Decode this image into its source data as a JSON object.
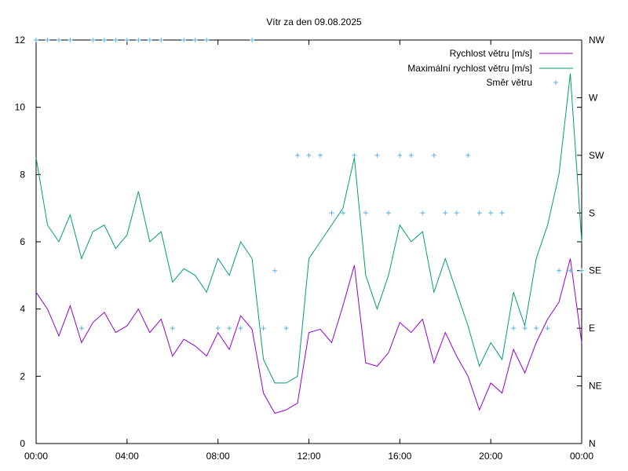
{
  "chart_data": {
    "type": "line",
    "title": "Vítr za den 09.08.2025",
    "x_ticks": [
      "00:00",
      "04:00",
      "08:00",
      "12:00",
      "16:00",
      "20:00",
      "00:00"
    ],
    "x_range_hours": [
      0,
      24
    ],
    "y_left": {
      "min": 0,
      "max": 12,
      "ticks": [
        0,
        2,
        4,
        6,
        8,
        10,
        12
      ]
    },
    "y_right": {
      "ticks": [
        "N",
        "NE",
        "E",
        "SE",
        "S",
        "SW",
        "W",
        "NW"
      ]
    },
    "grid": false,
    "legend_position": "top-right",
    "colors": {
      "speed": "#9400d3",
      "max": "#009e73",
      "dir": "#56b4e9"
    },
    "series": [
      {
        "name": "Rychlost větru [m/s]",
        "unit": "m/s",
        "points": [
          [
            0,
            4.5
          ],
          [
            0.5,
            4.0
          ],
          [
            1,
            3.2
          ],
          [
            1.5,
            4.1
          ],
          [
            2,
            3.0
          ],
          [
            2.5,
            3.6
          ],
          [
            3,
            3.9
          ],
          [
            3.5,
            3.3
          ],
          [
            4,
            3.5
          ],
          [
            4.5,
            4.0
          ],
          [
            5,
            3.3
          ],
          [
            5.5,
            3.7
          ],
          [
            6,
            2.6
          ],
          [
            6.5,
            3.1
          ],
          [
            7,
            2.9
          ],
          [
            7.5,
            2.6
          ],
          [
            8,
            3.3
          ],
          [
            8.5,
            2.8
          ],
          [
            9,
            3.8
          ],
          [
            9.5,
            3.4
          ],
          [
            10,
            1.5
          ],
          [
            10.5,
            0.9
          ],
          [
            11,
            1.0
          ],
          [
            11.5,
            1.2
          ],
          [
            12,
            3.3
          ],
          [
            12.5,
            3.4
          ],
          [
            13,
            3.0
          ],
          [
            13.5,
            4.1
          ],
          [
            14,
            5.3
          ],
          [
            14.5,
            2.4
          ],
          [
            15,
            2.3
          ],
          [
            15.5,
            2.7
          ],
          [
            16,
            3.6
          ],
          [
            16.5,
            3.3
          ],
          [
            17,
            3.7
          ],
          [
            17.5,
            2.4
          ],
          [
            18,
            3.3
          ],
          [
            18.5,
            2.6
          ],
          [
            19,
            2.0
          ],
          [
            19.5,
            1.0
          ],
          [
            20,
            1.8
          ],
          [
            20.5,
            1.5
          ],
          [
            21,
            2.8
          ],
          [
            21.5,
            2.1
          ],
          [
            22,
            3.0
          ],
          [
            22.5,
            3.7
          ],
          [
            23,
            4.2
          ],
          [
            23.5,
            5.5
          ],
          [
            24,
            3.0
          ]
        ]
      },
      {
        "name": "Maximální rychlost větru [m/s]",
        "unit": "m/s",
        "points": [
          [
            0,
            8.5
          ],
          [
            0.5,
            6.5
          ],
          [
            1,
            6.0
          ],
          [
            1.5,
            6.8
          ],
          [
            2,
            5.5
          ],
          [
            2.5,
            6.3
          ],
          [
            3,
            6.5
          ],
          [
            3.5,
            5.8
          ],
          [
            4,
            6.2
          ],
          [
            4.5,
            7.5
          ],
          [
            5,
            6.0
          ],
          [
            5.5,
            6.3
          ],
          [
            6,
            4.8
          ],
          [
            6.5,
            5.2
          ],
          [
            7,
            5.0
          ],
          [
            7.5,
            4.5
          ],
          [
            8,
            5.5
          ],
          [
            8.5,
            5.0
          ],
          [
            9,
            6.0
          ],
          [
            9.5,
            5.5
          ],
          [
            10,
            2.5
          ],
          [
            10.5,
            1.8
          ],
          [
            11,
            1.8
          ],
          [
            11.5,
            2.0
          ],
          [
            12,
            5.5
          ],
          [
            12.5,
            6.0
          ],
          [
            13,
            6.5
          ],
          [
            13.5,
            7.0
          ],
          [
            14,
            8.5
          ],
          [
            14.5,
            5.0
          ],
          [
            15,
            4.0
          ],
          [
            15.5,
            5.0
          ],
          [
            16,
            6.5
          ],
          [
            16.5,
            6.0
          ],
          [
            17,
            6.3
          ],
          [
            17.5,
            4.5
          ],
          [
            18,
            5.5
          ],
          [
            18.5,
            4.5
          ],
          [
            19,
            3.5
          ],
          [
            19.5,
            2.3
          ],
          [
            20,
            3.0
          ],
          [
            20.5,
            2.5
          ],
          [
            21,
            4.5
          ],
          [
            21.5,
            3.5
          ],
          [
            22,
            5.5
          ],
          [
            22.5,
            6.5
          ],
          [
            23,
            8.0
          ],
          [
            23.5,
            11.0
          ],
          [
            24,
            6.0
          ]
        ]
      },
      {
        "name": "Směr větru",
        "points": [
          [
            0,
            "NW"
          ],
          [
            0.5,
            "NW"
          ],
          [
            1,
            "NW"
          ],
          [
            1.5,
            "NW"
          ],
          [
            2,
            "E"
          ],
          [
            2.5,
            "NW"
          ],
          [
            3,
            "NW"
          ],
          [
            3.5,
            "NW"
          ],
          [
            4,
            "NW"
          ],
          [
            4.5,
            "NW"
          ],
          [
            5,
            "NW"
          ],
          [
            5.5,
            "NW"
          ],
          [
            6,
            "E"
          ],
          [
            6.5,
            "NW"
          ],
          [
            7,
            "NW"
          ],
          [
            7.5,
            "NW"
          ],
          [
            8,
            "E"
          ],
          [
            8.5,
            "E"
          ],
          [
            9,
            "E"
          ],
          [
            9.5,
            "NW"
          ],
          [
            10,
            "E"
          ],
          [
            10.5,
            "SE"
          ],
          [
            11,
            "E"
          ],
          [
            11.5,
            "SW"
          ],
          [
            12,
            "SW"
          ],
          [
            12.5,
            "SW"
          ],
          [
            13,
            "S"
          ],
          [
            13.5,
            "S"
          ],
          [
            14,
            "SW"
          ],
          [
            14.5,
            "S"
          ],
          [
            15,
            "SW"
          ],
          [
            15.5,
            "S"
          ],
          [
            16,
            "SW"
          ],
          [
            16.5,
            "SW"
          ],
          [
            17,
            "S"
          ],
          [
            17.5,
            "SW"
          ],
          [
            18,
            "S"
          ],
          [
            18.5,
            "S"
          ],
          [
            19,
            "SW"
          ],
          [
            19.5,
            "S"
          ],
          [
            20,
            "S"
          ],
          [
            20.5,
            "S"
          ],
          [
            21,
            "E"
          ],
          [
            21.5,
            "E"
          ],
          [
            22,
            "E"
          ],
          [
            22.5,
            "E"
          ],
          [
            23,
            "SE"
          ],
          [
            23.5,
            "SE"
          ],
          [
            24,
            "SE"
          ]
        ]
      }
    ]
  }
}
